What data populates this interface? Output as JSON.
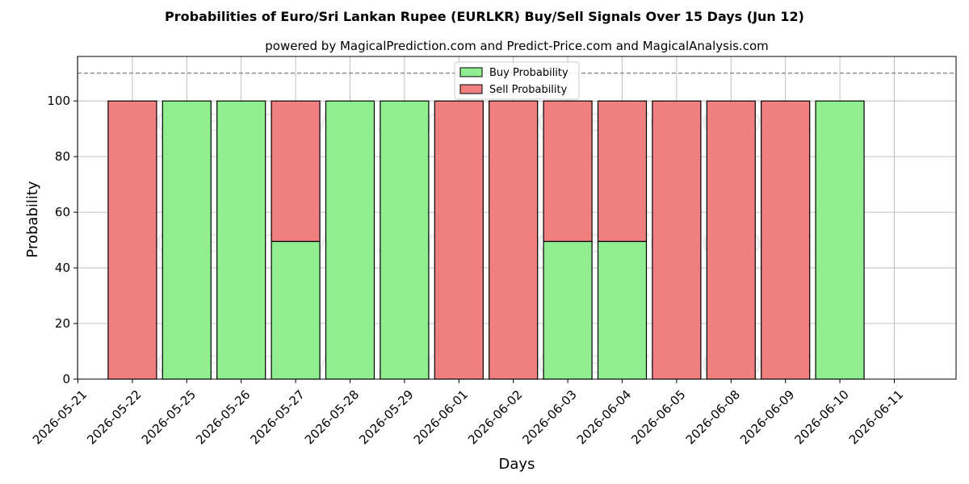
{
  "chart_data": {
    "type": "bar",
    "stacked": true,
    "title": "Probabilities of Euro/Sri Lankan Rupee (EURLKR) Buy/Sell Signals Over 15 Days (Jun 12)",
    "subtitle": "powered by MagicalPrediction.com and Predict-Price.com and MagicalAnalysis.com",
    "xlabel": "Days",
    "ylabel": "Probability",
    "ylim": [
      0,
      116
    ],
    "yticks": [
      "0",
      "20",
      "40",
      "60",
      "80",
      "100"
    ],
    "reference_line": 110,
    "grid": true,
    "legend_position": "top-center",
    "categories": [
      "2026-05-21",
      "2026-05-22",
      "2026-05-25",
      "2026-05-26",
      "2026-05-27",
      "2026-05-28",
      "2026-05-29",
      "2026-06-01",
      "2026-06-02",
      "2026-06-03",
      "2026-06-04",
      "2026-06-05",
      "2026-06-08",
      "2026-06-09",
      "2026-06-10",
      "2026-06-11"
    ],
    "series": [
      {
        "name": "Buy Probability",
        "color": "#90ee90",
        "values": [
          null,
          0,
          100,
          100,
          49.5,
          100,
          100,
          0,
          0,
          49.5,
          49.5,
          0,
          0,
          0,
          100,
          null
        ]
      },
      {
        "name": "Sell Probability",
        "color": "#f08080",
        "values": [
          null,
          100,
          0,
          0,
          50.5,
          0,
          0,
          100,
          100,
          50.5,
          50.5,
          100,
          100,
          100,
          0,
          null
        ]
      }
    ]
  },
  "watermarks": [
    "MagicalAnalysis.com",
    "MagicalPrediction.com",
    "MagicalAnalysis.com",
    "MagicalPrediction.com",
    "MagicalAnalysis.com",
    "MagicalPrediction.com"
  ]
}
